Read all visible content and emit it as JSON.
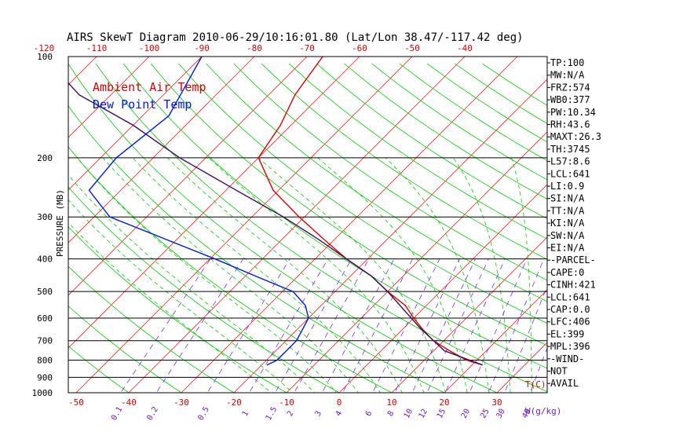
{
  "chart_data": {
    "type": "line",
    "title": "AIRS SkewT Diagram 2010-06-29/10:16:01.80 (Lat/Lon 38.47/-117.42 deg)",
    "ylabel": "PRESSURE (MB)",
    "xlabel": "T(C)",
    "mixing_ratio_unit": "W(g/kg)",
    "y_log_scale": true,
    "ylim": [
      1000,
      100
    ],
    "xlim_bottom_C": [
      -50,
      40
    ],
    "top_ticks": [
      "-120",
      "-110",
      "-100",
      "-90",
      "-80",
      "-70",
      "-60",
      "-50",
      "-40"
    ],
    "bottom_ticks": [
      "-50",
      "-40",
      "-30",
      "-20",
      "-10",
      "0",
      "10",
      "20",
      "30"
    ],
    "pressure_ticks": [
      "100",
      "200",
      "300",
      "400",
      "500",
      "600",
      "700",
      "800",
      "900",
      "1000"
    ],
    "mixing_ratio_labels": [
      "0.1",
      "0.2",
      "0.5",
      "1",
      "1.5",
      "2",
      "3",
      "4",
      "6",
      "8",
      "10",
      "12",
      "15",
      "20",
      "25",
      "30",
      "40"
    ],
    "legend": [
      {
        "label": "Ambient Air Temp",
        "color": "#e00000"
      },
      {
        "label": "Dew Point Temp",
        "color": "#0018e0"
      }
    ],
    "series": [
      {
        "name": "Ambient Air Temp",
        "color": "#e00000",
        "points": [
          [
            100,
            -67
          ],
          [
            130,
            -65
          ],
          [
            160,
            -62
          ],
          [
            200,
            -60
          ],
          [
            250,
            -51
          ],
          [
            300,
            -41
          ],
          [
            350,
            -32
          ],
          [
            400,
            -24
          ],
          [
            450,
            -16
          ],
          [
            500,
            -10
          ],
          [
            550,
            -4
          ],
          [
            600,
            0
          ],
          [
            650,
            4
          ],
          [
            700,
            8
          ],
          [
            750,
            13
          ],
          [
            800,
            18
          ],
          [
            827,
            22
          ]
        ]
      },
      {
        "name": "Dew Point Temp",
        "color": "#0018e0",
        "points": [
          [
            100,
            -90
          ],
          [
            150,
            -85
          ],
          [
            200,
            -87
          ],
          [
            250,
            -86
          ],
          [
            300,
            -77
          ],
          [
            350,
            -62
          ],
          [
            400,
            -49
          ],
          [
            450,
            -38
          ],
          [
            500,
            -28
          ],
          [
            550,
            -23
          ],
          [
            600,
            -20
          ],
          [
            700,
            -18
          ],
          [
            800,
            -18
          ],
          [
            827,
            -19
          ]
        ]
      },
      {
        "name": "Parcel",
        "color": "#3a0a5a",
        "points": [
          [
            827,
            22
          ],
          [
            750,
            12
          ],
          [
            641,
            3
          ],
          [
            500,
            -10
          ],
          [
            450,
            -16
          ],
          [
            400,
            -24
          ],
          [
            350,
            -33
          ],
          [
            300,
            -44
          ],
          [
            250,
            -58
          ],
          [
            200,
            -75
          ],
          [
            160,
            -90
          ],
          [
            130,
            -106
          ],
          [
            100,
            -120
          ]
        ]
      }
    ],
    "stats": [
      "TP:100",
      "MW:N/A",
      "FRZ:574",
      "WB0:377",
      "PW:10.34",
      "RH:43.6",
      "MAXT:26.3",
      "TH:3745",
      "L57:8.6",
      "LCL:641",
      "LI:0.9",
      "SI:N/A",
      "TT:N/A",
      "KI:N/A",
      "SW:N/A",
      "EI:N/A",
      "-PARCEL-",
      "CAPE:0",
      "CINH:421",
      "LCL:641",
      "CAP:0.0",
      "LFC:406",
      "EL:399",
      "MPL:396",
      "-WIND-",
      "NOT",
      "AVAIL"
    ],
    "colors": {
      "isotherm": "#ff2020",
      "dry_adiabat": "#00d000",
      "moist_adiabat": "#00d000",
      "mixing_ratio": "#7a2aff",
      "isobar": "#000000"
    }
  }
}
